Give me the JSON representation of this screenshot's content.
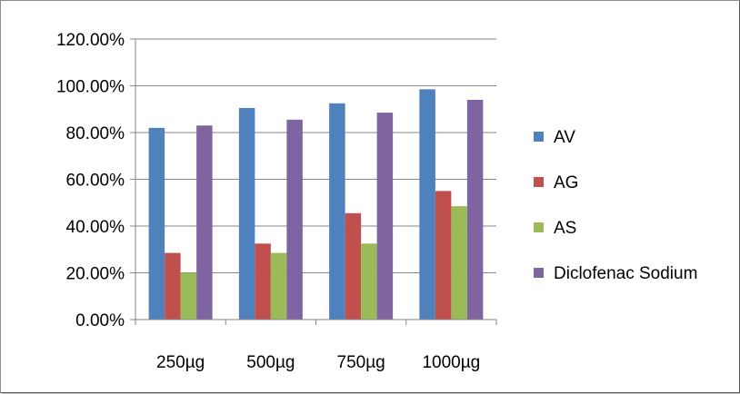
{
  "chart_data": {
    "type": "bar",
    "categories": [
      "250µg",
      "500µg",
      "750µg",
      "1000µg"
    ],
    "series": [
      {
        "name": "AV",
        "values": [
          82,
          90.5,
          92.5,
          98.5
        ],
        "color": "#4f81bd"
      },
      {
        "name": "AG",
        "values": [
          28.5,
          32.5,
          45.5,
          55
        ],
        "color": "#c0504d"
      },
      {
        "name": "AS",
        "values": [
          20,
          28.5,
          32.5,
          48.5
        ],
        "color": "#9bbb59"
      },
      {
        "name": "Diclofenac Sodium",
        "values": [
          83,
          85.5,
          88.5,
          94
        ],
        "color": "#8064a2"
      }
    ],
    "ylim": [
      0,
      120
    ],
    "yticks": [
      "0.00%",
      "20.00%",
      "40.00%",
      "60.00%",
      "80.00%",
      "100.00%",
      "120.00%"
    ],
    "grid": true,
    "legend": "right",
    "title": "",
    "xlabel": "",
    "ylabel": ""
  }
}
